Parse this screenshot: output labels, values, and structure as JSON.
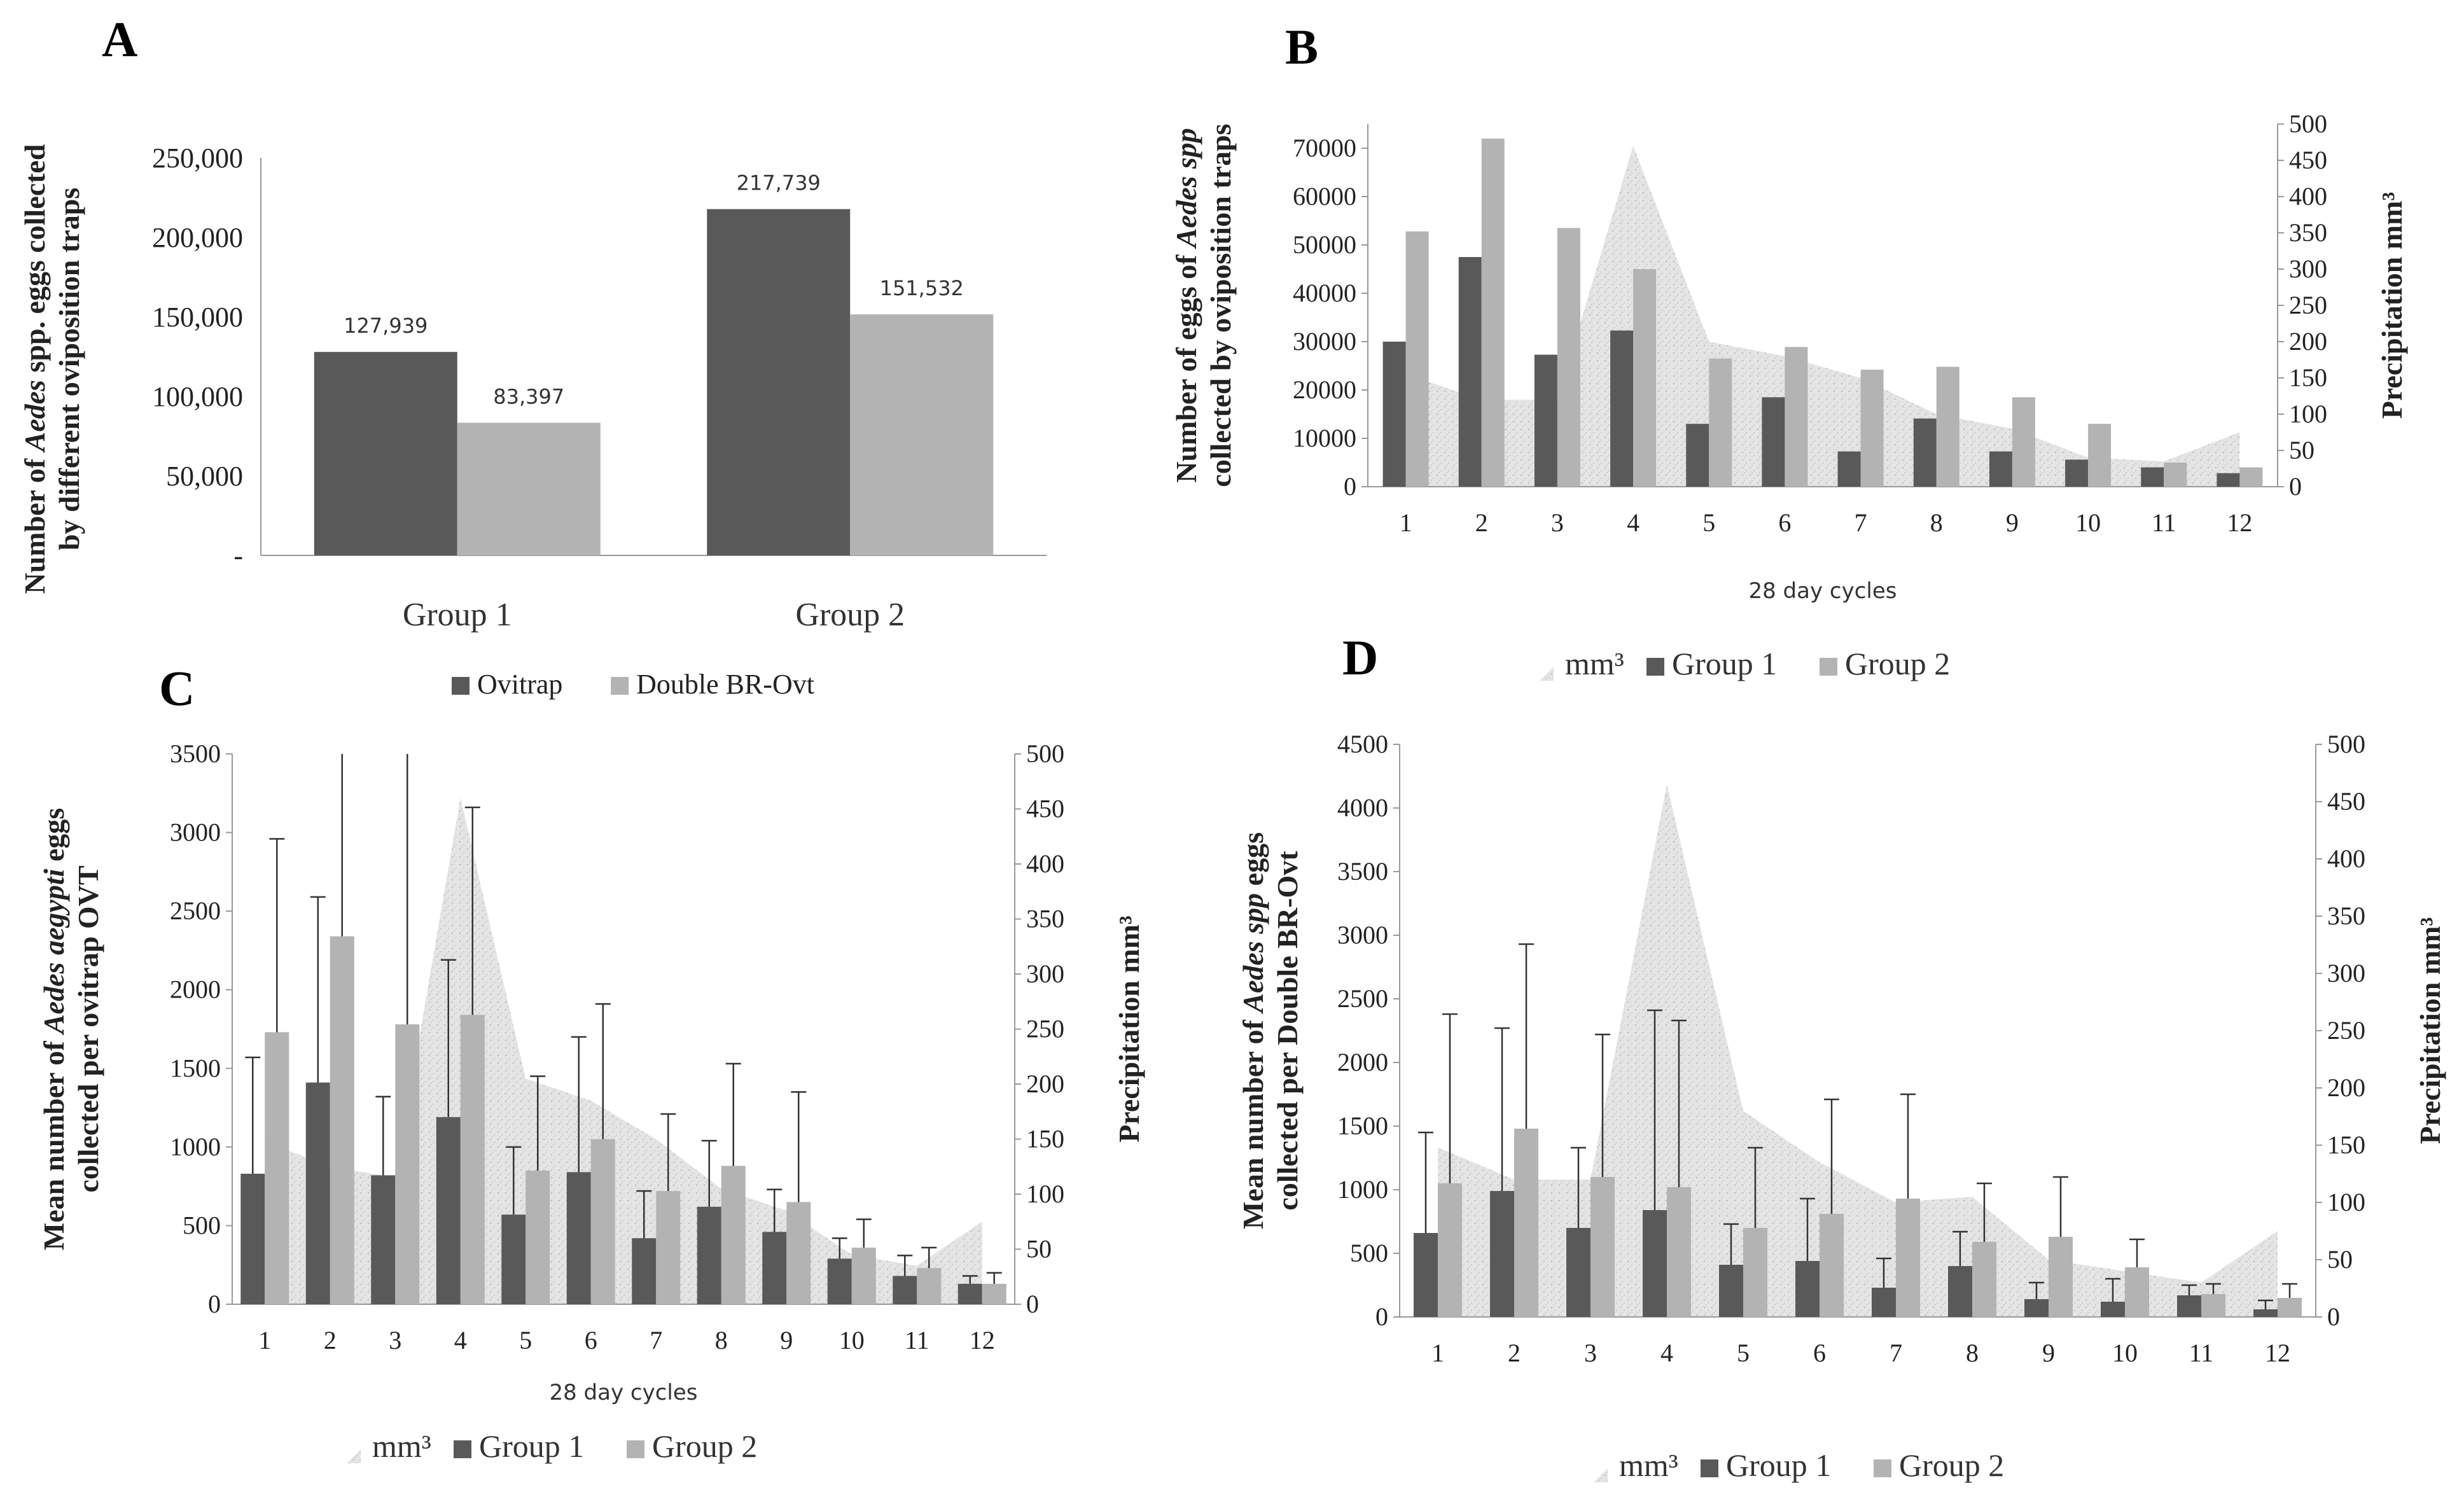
{
  "colors": {
    "group1": "#595959",
    "group2": "#b3b3b3",
    "area": "#dedede",
    "axis": "#999999"
  },
  "chart_data": [
    {
      "panel": "A",
      "type": "bar",
      "title": "",
      "ylabel_line1": "Number of Aedes spp. eggs collected",
      "ylabel_line2": "by different oviposition traps",
      "ylabel_pre": "Number of ",
      "ylabel_italic": "Aedes",
      "ylabel_post": " spp. eggs collected",
      "categories": [
        "Group 1",
        "Group 2"
      ],
      "series": [
        {
          "name": "Ovitrap",
          "values": [
            127939,
            217739
          ]
        },
        {
          "name": "Double BR-Ovt",
          "values": [
            83397,
            151532
          ]
        }
      ],
      "data_labels": [
        [
          "127,939",
          "217,739"
        ],
        [
          "83,397",
          "151,532"
        ]
      ],
      "ylim": [
        0,
        250000
      ],
      "yticks": [
        0,
        50000,
        100000,
        150000,
        200000,
        250000
      ],
      "ytick_labels": [
        "-",
        "50,000",
        "100,000",
        "150,000",
        "200,000",
        "250,000"
      ],
      "legend": "bottom"
    },
    {
      "panel": "B",
      "type": "bar",
      "ylabel_pre": "Number of eggs of ",
      "ylabel_italic": "Aedes spp",
      "ylabel_line2": "collected by oviposition traps",
      "y2label": "Precipitation mm³",
      "xlabel": "28 day cycles",
      "categories": [
        "1",
        "2",
        "3",
        "4",
        "5",
        "6",
        "7",
        "8",
        "9",
        "10",
        "11",
        "12"
      ],
      "area": {
        "name": "mm³",
        "values": [
          155,
          120,
          120,
          470,
          200,
          180,
          150,
          100,
          80,
          40,
          35,
          75
        ]
      },
      "series": [
        {
          "name": "Group 1",
          "values": [
            30000,
            47500,
            27300,
            32300,
            13000,
            18500,
            7300,
            14100,
            7300,
            5600,
            4000,
            2800
          ]
        },
        {
          "name": "Group 2",
          "values": [
            52800,
            72000,
            53500,
            45000,
            26500,
            28900,
            24200,
            24800,
            18500,
            13000,
            5000,
            4000
          ]
        }
      ],
      "ylim": [
        0,
        75000
      ],
      "yticks": [
        0,
        10000,
        20000,
        30000,
        40000,
        50000,
        60000,
        70000
      ],
      "y2lim": [
        0,
        500
      ],
      "y2ticks": [
        0,
        50,
        100,
        150,
        200,
        250,
        300,
        350,
        400,
        450,
        500
      ],
      "legend": "bottom"
    },
    {
      "panel": "C",
      "type": "bar",
      "ylabel_pre": "Mean number of ",
      "ylabel_italic": "Aedes aegypti",
      "ylabel_post": " eggs",
      "ylabel_line2": "collected per ovitrap OVT",
      "y2label": "Precipitation mm³",
      "xlabel": "28 day cycles",
      "categories": [
        "1",
        "2",
        "3",
        "4",
        "5",
        "6",
        "7",
        "8",
        "9",
        "10",
        "11",
        "12"
      ],
      "area": {
        "name": "mm³",
        "values": [
          148,
          125,
          115,
          460,
          205,
          185,
          150,
          105,
          85,
          45,
          35,
          75
        ]
      },
      "series": [
        {
          "name": "Group 1",
          "values": [
            830,
            1410,
            820,
            1190,
            570,
            840,
            420,
            620,
            460,
            290,
            180,
            130
          ],
          "error_upper": [
            1570,
            2590,
            1320,
            2190,
            1000,
            1700,
            720,
            1040,
            730,
            420,
            310,
            180
          ]
        },
        {
          "name": "Group 2",
          "values": [
            1730,
            2340,
            1780,
            1840,
            850,
            1050,
            720,
            880,
            650,
            360,
            230,
            130
          ],
          "error_upper": [
            2960,
            3500,
            3500,
            3160,
            1450,
            1910,
            1210,
            1530,
            1350,
            540,
            360,
            200
          ]
        }
      ],
      "ylim": [
        0,
        3500
      ],
      "yticks": [
        0,
        500,
        1000,
        1500,
        2000,
        2500,
        3000,
        3500
      ],
      "y2lim": [
        0,
        500
      ],
      "y2ticks": [
        0,
        50,
        100,
        150,
        200,
        250,
        300,
        350,
        400,
        450,
        500
      ],
      "legend": "bottom"
    },
    {
      "panel": "D",
      "type": "bar",
      "ylabel_pre": "Mean number of ",
      "ylabel_italic": "Aedes spp",
      "ylabel_post": " eggs",
      "ylabel_line2": "collected per Double BR-Ovt",
      "y2label": "Precipitation mm³",
      "categories": [
        "1",
        "2",
        "3",
        "4",
        "5",
        "6",
        "7",
        "8",
        "9",
        "10",
        "11",
        "12"
      ],
      "area": {
        "name": "mm³",
        "values": [
          148,
          120,
          120,
          465,
          180,
          135,
          100,
          105,
          50,
          40,
          30,
          75
        ]
      },
      "series": [
        {
          "name": "Group 1",
          "values": [
            660,
            990,
            700,
            840,
            410,
            440,
            230,
            400,
            140,
            120,
            170,
            60
          ],
          "error_upper": [
            1450,
            2270,
            1330,
            2410,
            730,
            930,
            460,
            670,
            270,
            300,
            250,
            130
          ]
        },
        {
          "name": "Group 2",
          "values": [
            1050,
            1480,
            1100,
            1020,
            700,
            810,
            930,
            590,
            630,
            390,
            180,
            150
          ],
          "error_upper": [
            2380,
            2930,
            2220,
            2330,
            1330,
            1710,
            1750,
            1050,
            1100,
            610,
            260,
            260
          ]
        }
      ],
      "ylim": [
        0,
        4500
      ],
      "yticks": [
        0,
        500,
        1000,
        1500,
        2000,
        2500,
        3000,
        3500,
        4000,
        4500
      ],
      "y2lim": [
        0,
        500
      ],
      "y2ticks": [
        0,
        50,
        100,
        150,
        200,
        250,
        300,
        350,
        400,
        450,
        500
      ],
      "legend": "bottom"
    }
  ]
}
